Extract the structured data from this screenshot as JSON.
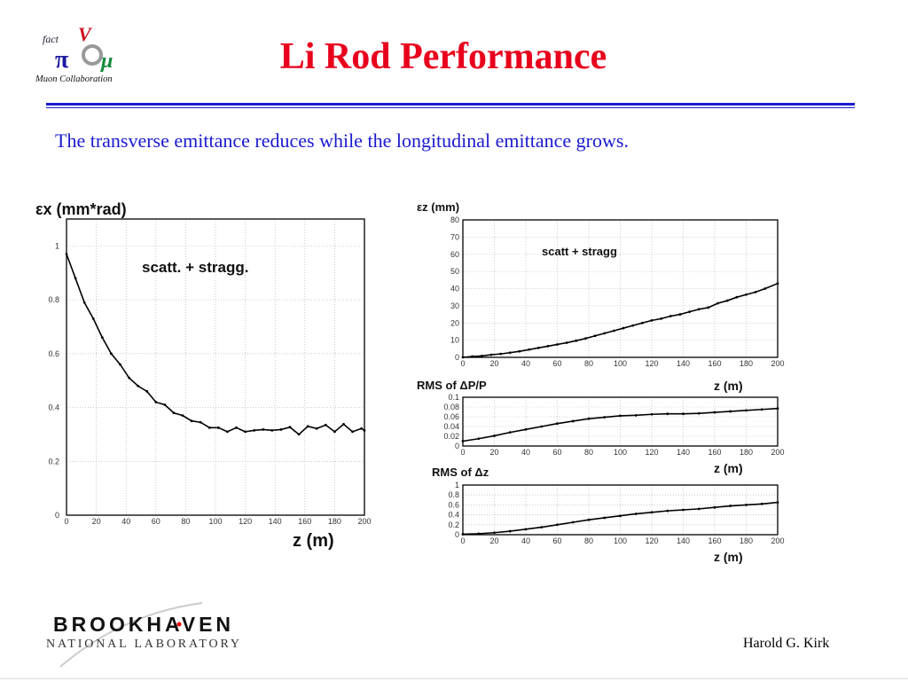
{
  "slide": {
    "title": "Li Rod Performance",
    "subtitle": "The transverse emittance reduces while the longitudinal emittance grows.",
    "author": "Harold G. Kirk",
    "title_color": "#e8001c",
    "text_color": "#1a1ad0"
  },
  "logos": {
    "muon": {
      "text_top": "fact",
      "text_bottom": "Muon Collaboration"
    },
    "bnl": {
      "line1": "BROOKHAVEN",
      "line2": "NATIONAL LABORATORY"
    }
  },
  "chart_data": [
    {
      "type": "line",
      "ylabel": "εx (mm*rad)",
      "xlabel": "z (m)",
      "annotation": "scatt. + stragg.",
      "xlim": [
        0,
        200
      ],
      "ylim": [
        0,
        1.1
      ],
      "grid": true,
      "xticks": [
        0,
        20,
        40,
        60,
        80,
        100,
        120,
        140,
        160,
        180,
        200
      ],
      "yticks": [
        0,
        0.2,
        0.4,
        0.6,
        0.8,
        1
      ],
      "x": [
        0,
        6,
        12,
        18,
        24,
        30,
        36,
        42,
        48,
        54,
        60,
        66,
        72,
        78,
        84,
        90,
        96,
        102,
        108,
        114,
        120,
        126,
        132,
        138,
        144,
        150,
        156,
        162,
        168,
        174,
        180,
        186,
        192,
        198,
        200
      ],
      "y": [
        0.97,
        0.88,
        0.79,
        0.73,
        0.66,
        0.6,
        0.56,
        0.51,
        0.48,
        0.46,
        0.42,
        0.41,
        0.38,
        0.37,
        0.35,
        0.345,
        0.325,
        0.325,
        0.31,
        0.325,
        0.31,
        0.315,
        0.318,
        0.315,
        0.318,
        0.327,
        0.3,
        0.33,
        0.322,
        0.335,
        0.31,
        0.338,
        0.31,
        0.322,
        0.315
      ]
    },
    {
      "type": "line",
      "ylabel": "εz (mm)",
      "xlabel": "",
      "annotation": "scatt + stragg",
      "xlim": [
        0,
        200
      ],
      "ylim": [
        0,
        80
      ],
      "grid": true,
      "xticks": [
        0,
        20,
        40,
        60,
        80,
        100,
        120,
        140,
        160,
        180,
        200
      ],
      "yticks": [
        0,
        10,
        20,
        30,
        40,
        50,
        60,
        70,
        80
      ],
      "x": [
        0,
        6,
        12,
        18,
        24,
        30,
        36,
        42,
        48,
        54,
        60,
        66,
        72,
        78,
        84,
        90,
        96,
        102,
        108,
        114,
        120,
        126,
        132,
        138,
        144,
        150,
        156,
        162,
        168,
        174,
        180,
        186,
        192,
        200
      ],
      "y": [
        0,
        0.5,
        0.8,
        1.5,
        2,
        2.7,
        3.5,
        4.5,
        5.5,
        6.5,
        7.5,
        8.5,
        9.7,
        11,
        12.5,
        14,
        15.5,
        17,
        18.5,
        20,
        21.5,
        22.5,
        24,
        25,
        26.5,
        28,
        29,
        31.5,
        33,
        35,
        36.5,
        38,
        40,
        43
      ]
    },
    {
      "type": "line",
      "ylabel": "RMS of ΔP/P",
      "xlabel": "z (m)",
      "xlim": [
        0,
        200
      ],
      "ylim": [
        0,
        0.1
      ],
      "grid": true,
      "xticks": [
        0,
        20,
        40,
        60,
        80,
        100,
        120,
        140,
        160,
        180,
        200
      ],
      "yticks": [
        0,
        0.02,
        0.04,
        0.06,
        0.08,
        0.1
      ],
      "x": [
        0,
        10,
        20,
        30,
        40,
        50,
        60,
        70,
        80,
        90,
        100,
        110,
        120,
        130,
        140,
        150,
        160,
        170,
        180,
        190,
        200
      ],
      "y": [
        0.01,
        0.015,
        0.021,
        0.028,
        0.034,
        0.04,
        0.046,
        0.051,
        0.056,
        0.059,
        0.062,
        0.063,
        0.065,
        0.066,
        0.066,
        0.067,
        0.069,
        0.071,
        0.073,
        0.075,
        0.077
      ]
    },
    {
      "type": "line",
      "ylabel": "RMS of Δz",
      "xlabel": "z (m)",
      "xlim": [
        0,
        200
      ],
      "ylim": [
        0,
        1
      ],
      "grid": true,
      "xticks": [
        0,
        20,
        40,
        60,
        80,
        100,
        120,
        140,
        160,
        180,
        200
      ],
      "yticks": [
        0,
        0.2,
        0.4,
        0.6,
        0.8,
        1
      ],
      "x": [
        0,
        10,
        20,
        30,
        40,
        50,
        60,
        70,
        80,
        90,
        100,
        110,
        120,
        130,
        140,
        150,
        160,
        170,
        180,
        190,
        200
      ],
      "y": [
        0.01,
        0.02,
        0.04,
        0.07,
        0.11,
        0.15,
        0.2,
        0.25,
        0.3,
        0.34,
        0.38,
        0.42,
        0.45,
        0.48,
        0.5,
        0.52,
        0.55,
        0.58,
        0.6,
        0.62,
        0.65
      ]
    }
  ]
}
